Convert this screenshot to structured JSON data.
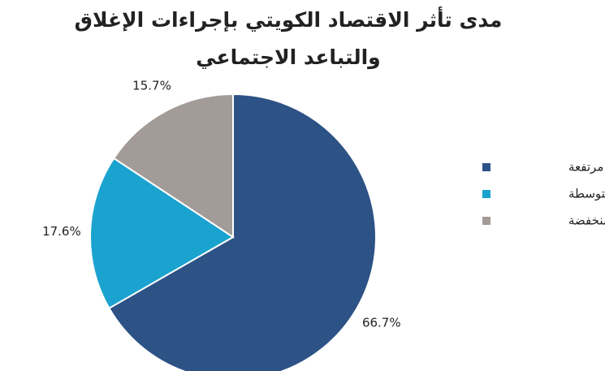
{
  "chart_data": {
    "type": "pie",
    "title": "مدى تأثر الاقتصاد الكويتي بإجراءات الإغلاق والتباعد الاجتماعي",
    "categories": [
      "مرتفعة",
      "متوسطة",
      "منخفضة"
    ],
    "values": [
      66.7,
      17.6,
      15.7
    ],
    "value_labels": [
      "66.7%",
      "17.6%",
      "15.7%"
    ],
    "colors": [
      "#2d5286",
      "#1ba3cf",
      "#a29b97"
    ],
    "legend": "right"
  }
}
